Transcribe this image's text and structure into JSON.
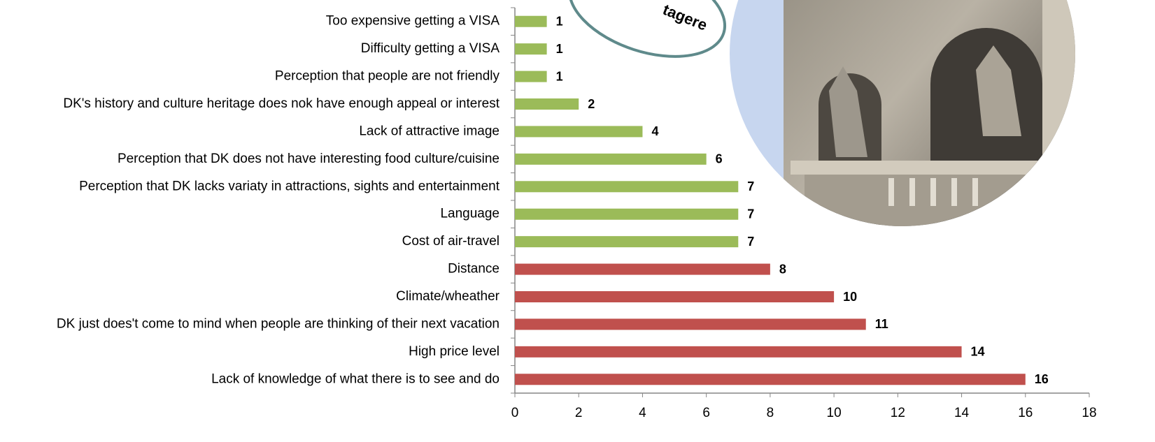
{
  "chart_data": {
    "type": "bar",
    "orientation": "horizontal",
    "annotation": "tagere",
    "categories": [
      "Too expensive getting a VISA",
      "Difficulty getting a VISA",
      "Perception that people are not friendly",
      "DK's history and culture heritage does nok have enough appeal or interest",
      "Lack of attractive image",
      "Perception that DK does not have interesting food culture/cuisine",
      "Perception that DK lacks variaty in attractions, sights and entertainment",
      "Language",
      "Cost of air-travel",
      "Distance",
      "Climate/wheather",
      "DK just does't come to mind when people are thinking of their next vacation",
      "High price level",
      "Lack of knowledge of what there is to see and do"
    ],
    "values": [
      1,
      1,
      1,
      2,
      4,
      6,
      7,
      7,
      7,
      8,
      10,
      11,
      14,
      16
    ],
    "colors": [
      "#9bbb59",
      "#9bbb59",
      "#9bbb59",
      "#9bbb59",
      "#9bbb59",
      "#9bbb59",
      "#9bbb59",
      "#9bbb59",
      "#9bbb59",
      "#c0504d",
      "#c0504d",
      "#c0504d",
      "#c0504d",
      "#c0504d"
    ],
    "xlim": [
      0,
      18
    ],
    "xticks": [
      0,
      2,
      4,
      6,
      8,
      10,
      12,
      14,
      16,
      18
    ],
    "grid": false
  }
}
